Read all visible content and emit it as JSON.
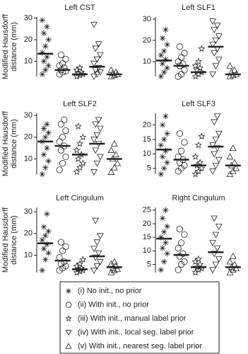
{
  "legend": [
    "(i) No init., no prior",
    "(ii) With init., no prior",
    "(iii) With init., manual label prior",
    "(iv) With init., local seg. label prior",
    "(v) With init., nearest seg. label prior"
  ],
  "chart_data": [
    {
      "type": "strip",
      "title": "Left CST",
      "ylabel": [
        "Modified Hausdorff",
        "distance (mm)"
      ],
      "ylim": [
        3,
        30.5
      ],
      "yticks": [
        10,
        20,
        30
      ],
      "color": "#222222",
      "groups": [
        {
          "values": [
            4,
            6,
            8,
            10,
            12,
            14,
            17,
            20,
            23,
            26,
            29
          ],
          "mean": 13.5
        },
        {
          "values": [
            4,
            5,
            5.5,
            6,
            7,
            8,
            9,
            11,
            13
          ],
          "mean": 6
        },
        {
          "values": [
            3,
            3.5,
            4,
            4.5,
            5,
            6,
            7
          ],
          "mean": 4
        },
        {
          "values": [
            3,
            4,
            5,
            6,
            7,
            9,
            11,
            13,
            16,
            18,
            27
          ],
          "mean": 7.5
        },
        {
          "values": [
            3,
            3.5,
            4,
            4.5,
            5,
            6
          ],
          "mean": 4
        }
      ]
    },
    {
      "type": "strip",
      "title": "Left SLF1",
      "ylim": [
        3,
        31
      ],
      "yticks": [
        10,
        20,
        30
      ],
      "color": "#222222",
      "groups": [
        {
          "values": [
            3,
            5,
            7,
            9,
            11,
            13,
            15,
            18,
            21,
            25
          ],
          "mean": 10.5
        },
        {
          "values": [
            3,
            4,
            6,
            8,
            9,
            10,
            12,
            14,
            17
          ],
          "mean": 8
        },
        {
          "values": [
            3,
            4,
            5,
            6,
            7,
            8,
            10,
            16
          ],
          "mean": 5
        },
        {
          "values": [
            4,
            8,
            11,
            14,
            16,
            18,
            20,
            22,
            25,
            27,
            29
          ],
          "mean": 17
        },
        {
          "values": [
            3,
            3.5,
            4,
            5,
            6,
            8
          ],
          "mean": 4
        }
      ]
    },
    {
      "type": "strip",
      "title": "Left SLF2",
      "ylabel": [
        "Modified Hausdorff",
        "distance (mm)"
      ],
      "ylim": [
        3,
        31
      ],
      "yticks": [
        10,
        20,
        30
      ],
      "color": "#222222",
      "groups": [
        {
          "values": [
            3,
            6,
            9,
            12,
            15,
            18,
            20,
            22,
            24,
            26
          ],
          "mean": 18
        },
        {
          "values": [
            5,
            8,
            11,
            14,
            16,
            18,
            20,
            23,
            26,
            28
          ],
          "mean": 16
        },
        {
          "values": [
            4,
            6,
            8,
            10,
            12,
            14,
            17,
            20,
            25
          ],
          "mean": 12
        },
        {
          "values": [
            4,
            8,
            11,
            14,
            17,
            19,
            21,
            24,
            26,
            28
          ],
          "mean": 17
        },
        {
          "values": [
            4,
            6,
            8,
            10,
            12,
            14,
            17
          ],
          "mean": 10
        }
      ]
    },
    {
      "type": "strip",
      "title": "Left SLF3",
      "ylim": [
        3,
        24
      ],
      "yticks": [
        5,
        10,
        15,
        20
      ],
      "color": "#222222",
      "groups": [
        {
          "values": [
            3,
            5,
            7,
            9,
            11,
            13,
            15,
            17,
            20,
            23
          ],
          "mean": 11.5
        },
        {
          "values": [
            4,
            5,
            6,
            7,
            8,
            9,
            11,
            14,
            17
          ],
          "mean": 8
        },
        {
          "values": [
            3,
            4,
            5,
            6,
            7,
            9,
            13,
            16
          ],
          "mean": 6
        },
        {
          "values": [
            4,
            6,
            8,
            10,
            12,
            13,
            15,
            17,
            21,
            23
          ],
          "mean": 12.5
        },
        {
          "values": [
            3,
            4,
            5,
            6,
            7,
            9,
            12
          ],
          "mean": 6
        }
      ]
    },
    {
      "type": "strip",
      "title": "Left Cingulum",
      "ylabel": [
        "Modified Hausdorff",
        "distance (mm)"
      ],
      "ylim": [
        2,
        32
      ],
      "yticks": [
        10,
        20,
        30
      ],
      "color": "#222222",
      "groups": [
        {
          "values": [
            3,
            8,
            11,
            13,
            15,
            17,
            19,
            21,
            23,
            29
          ],
          "mean": 15.5
        },
        {
          "values": [
            3,
            4,
            5,
            6,
            7,
            9,
            12,
            14,
            16
          ],
          "mean": 7.5
        },
        {
          "values": [
            2,
            2.5,
            3,
            3.5,
            4,
            5,
            6,
            8
          ],
          "mean": 3.5
        },
        {
          "values": [
            3,
            5,
            7,
            9,
            11,
            13,
            16,
            19,
            26
          ],
          "mean": 9.5
        },
        {
          "values": [
            2,
            3,
            3.5,
            4,
            5,
            6,
            7
          ],
          "mean": 4.5
        }
      ]
    },
    {
      "type": "strip",
      "title": "Right Cingulum",
      "ylim": [
        2,
        26
      ],
      "yticks": [
        5,
        10,
        15,
        20,
        25
      ],
      "color": "#222222",
      "groups": [
        {
          "values": [
            3,
            6,
            9,
            11,
            13,
            15,
            17,
            19,
            22,
            25
          ],
          "mean": 14.5
        },
        {
          "values": [
            3,
            5,
            6,
            8,
            9,
            11,
            13,
            16,
            18
          ],
          "mean": 8.5
        },
        {
          "values": [
            2,
            3,
            3.5,
            4,
            5,
            6,
            7
          ],
          "mean": 4
        },
        {
          "values": [
            3,
            5,
            7,
            9,
            11,
            13,
            16,
            19,
            22
          ],
          "mean": 9.5
        },
        {
          "values": [
            2,
            3,
            3.5,
            4,
            5,
            6,
            8
          ],
          "mean": 4
        }
      ]
    }
  ]
}
